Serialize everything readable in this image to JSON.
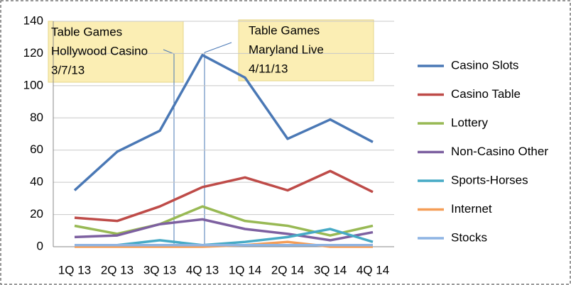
{
  "chart_data": {
    "type": "line",
    "categories": [
      "1Q 13",
      "2Q 13",
      "3Q 13",
      "4Q 13",
      "1Q 14",
      "2Q 14",
      "3Q 14",
      "4Q 14"
    ],
    "series": [
      {
        "name": "Casino Slots",
        "color": "#4a78b5",
        "values": [
          35,
          59,
          72,
          119,
          105,
          67,
          79,
          65
        ]
      },
      {
        "name": "Casino Table",
        "color": "#be4b48",
        "values": [
          18,
          16,
          25,
          37,
          43,
          35,
          47,
          34
        ]
      },
      {
        "name": "Lottery",
        "color": "#98b954",
        "values": [
          13,
          8,
          14,
          25,
          16,
          13,
          7,
          13
        ]
      },
      {
        "name": "Non-Casino Other",
        "color": "#7d60a0",
        "values": [
          6,
          7,
          14,
          17,
          11,
          8,
          4,
          9
        ]
      },
      {
        "name": "Sports-Horses",
        "color": "#46aac5",
        "values": [
          1,
          1,
          4,
          1,
          3,
          6,
          11,
          3
        ]
      },
      {
        "name": "Internet",
        "color": "#f59d56",
        "values": [
          0,
          0,
          0,
          0,
          1,
          3,
          0,
          0
        ]
      },
      {
        "name": "Stocks",
        "color": "#8eb4e3",
        "values": [
          1,
          1,
          1,
          1,
          1,
          1,
          1,
          1
        ]
      }
    ],
    "ylim": [
      0,
      140
    ],
    "yticks": [
      0,
      20,
      40,
      60,
      80,
      100,
      120,
      140
    ],
    "grid": true,
    "legend": "right",
    "annotations": [
      {
        "lines": [
          "Table Games",
          "Hollywood Casino",
          "3/7/13"
        ]
      },
      {
        "lines": [
          "Table Games",
          "Maryland Live",
          "4/11/13"
        ]
      }
    ]
  }
}
